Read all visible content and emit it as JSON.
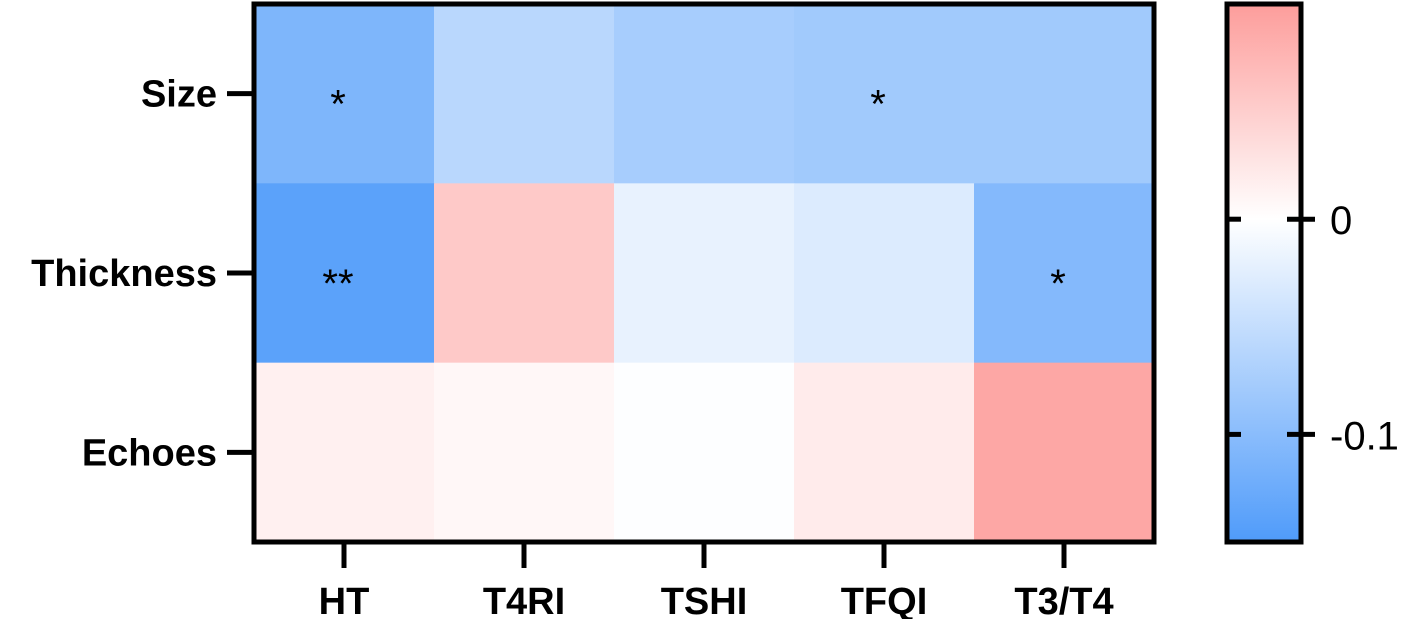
{
  "chart_data": {
    "type": "heatmap",
    "x_labels": [
      "HT",
      "T4RI",
      "TSHI",
      "TFQI",
      "T3/T4"
    ],
    "y_labels": [
      "Size",
      "Thickness",
      "Echoes"
    ],
    "values": [
      [
        -0.11,
        -0.06,
        -0.075,
        -0.08,
        -0.08
      ],
      [
        -0.14,
        0.055,
        -0.02,
        -0.03,
        -0.105
      ],
      [
        0.015,
        0.008,
        -0.002,
        0.02,
        0.09
      ]
    ],
    "significance": [
      [
        "*",
        "",
        "",
        "*",
        ""
      ],
      [
        "**",
        "",
        "",
        "",
        "*"
      ],
      [
        "",
        "",
        "",
        "",
        ""
      ]
    ],
    "colorbar": {
      "min": -0.15,
      "max": 0.1,
      "tick_values": [
        0,
        -0.1
      ],
      "tick_labels": [
        "0",
        "-0.1"
      ],
      "low_color": "#4f9bfa",
      "mid_color": "#ffffff",
      "high_color": "#fd9d9b"
    }
  }
}
